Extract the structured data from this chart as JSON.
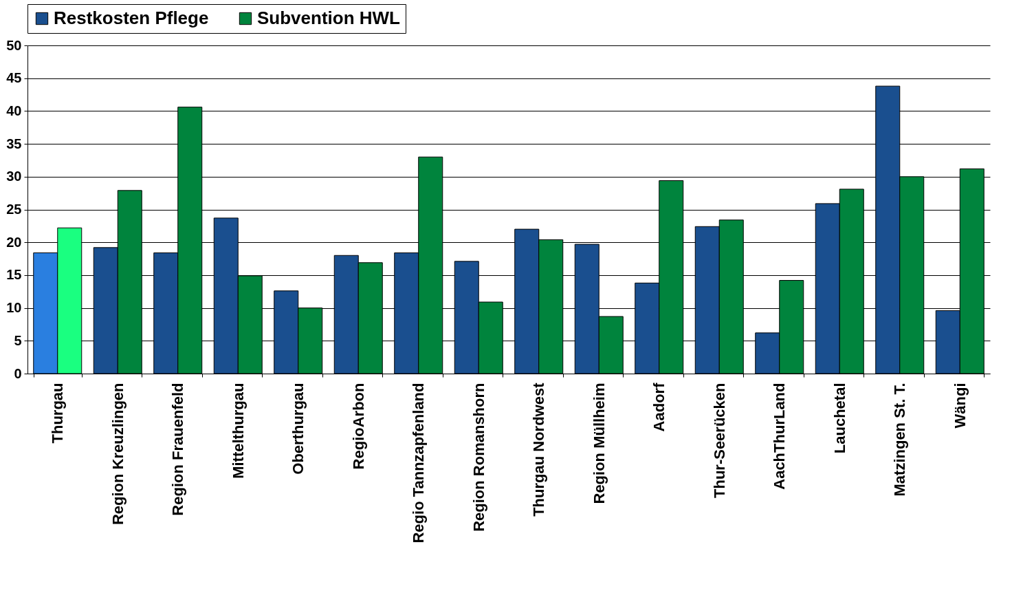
{
  "chart_data": {
    "type": "bar",
    "categories": [
      "Thurgau",
      "Region Kreuzlingen",
      "Region Frauenfeld",
      "Mittelthurgau",
      "Oberthurgau",
      "RegioArbon",
      "Regio Tannzapfenland",
      "Region Romanshorn",
      "Thurgau Nordwest",
      "Region Müllheim",
      "Aadorf",
      "Thur-Seerücken",
      "AachThurLand",
      "Lauchetal",
      "Matzingen St. T.",
      "Wängi"
    ],
    "series": [
      {
        "name": "Restkosten Pflege",
        "color": "#1a4f8f",
        "colors": [
          "#2a7fe0",
          "#1a4f8f",
          "#1a4f8f",
          "#1a4f8f",
          "#1a4f8f",
          "#1a4f8f",
          "#1a4f8f",
          "#1a4f8f",
          "#1a4f8f",
          "#1a4f8f",
          "#1a4f8f",
          "#1a4f8f",
          "#1a4f8f",
          "#1a4f8f",
          "#1a4f8f",
          "#1a4f8f"
        ],
        "values": [
          18.4,
          19.2,
          18.4,
          23.7,
          12.6,
          18.0,
          18.4,
          17.1,
          22.0,
          19.7,
          13.8,
          22.4,
          6.2,
          25.9,
          43.8,
          9.6
        ]
      },
      {
        "name": "Subvention HWL",
        "color": "#00843d",
        "colors": [
          "#1aff80",
          "#00843d",
          "#00843d",
          "#00843d",
          "#00843d",
          "#00843d",
          "#00843d",
          "#00843d",
          "#00843d",
          "#00843d",
          "#00843d",
          "#00843d",
          "#00843d",
          "#00843d",
          "#00843d",
          "#00843d"
        ],
        "values": [
          22.2,
          27.9,
          40.6,
          14.9,
          10.0,
          16.9,
          33.0,
          10.9,
          20.4,
          8.7,
          29.4,
          23.4,
          14.2,
          28.1,
          30.0,
          31.2
        ]
      }
    ],
    "ylim": [
      0,
      50
    ],
    "yticks": [
      0,
      5,
      10,
      15,
      20,
      25,
      30,
      35,
      40,
      45,
      50
    ],
    "grid": "y",
    "legend": "top"
  }
}
